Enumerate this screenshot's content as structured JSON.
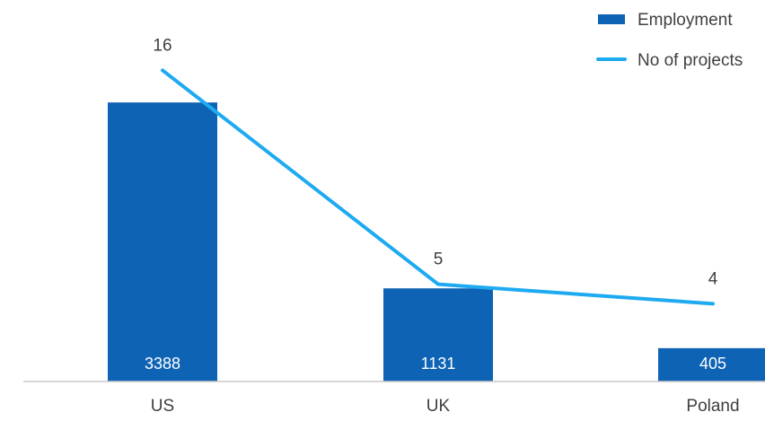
{
  "chart_data": {
    "type": "bar",
    "categories": [
      "US",
      "UK",
      "Poland"
    ],
    "series": [
      {
        "name": "Employment",
        "type": "bar",
        "values": [
          3388,
          1131,
          405
        ],
        "color": "#0e63b5"
      },
      {
        "name": "No of projects",
        "type": "line",
        "values": [
          16,
          5,
          4
        ],
        "color": "#1eaaf1"
      }
    ],
    "bar_ylim": [
      0,
      4000
    ],
    "line_ylim": [
      0,
      18
    ],
    "grid": false,
    "legend_position": "top-right",
    "title": "",
    "xlabel": "",
    "ylabel": ""
  }
}
